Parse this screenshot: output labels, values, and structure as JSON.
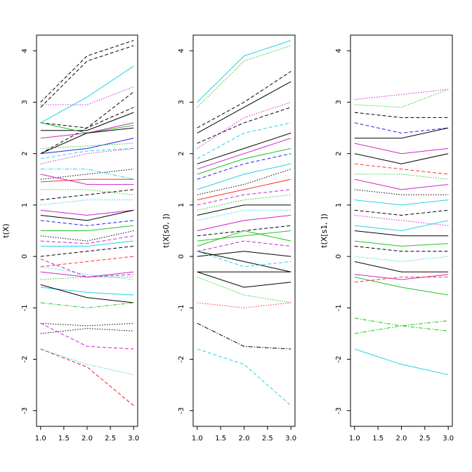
{
  "chart_data": [
    {
      "type": "line",
      "ylabel": "t(X)",
      "x": [
        1,
        2,
        3
      ],
      "xlim": [
        1,
        3
      ],
      "ylim": [
        -3,
        4
      ],
      "xticks": [
        "1.0",
        "1.5",
        "2.0",
        "2.5",
        "3.0"
      ],
      "yticks": [
        "-3",
        "-2",
        "-1",
        "0",
        "1",
        "2",
        "3",
        "4"
      ],
      "grid": false,
      "series": [
        {
          "values": [
            3.0,
            3.9,
            4.2
          ],
          "color": "#000000",
          "dash": "dashed"
        },
        {
          "values": [
            2.9,
            3.8,
            4.1
          ],
          "color": "#000000",
          "dash": "dashed"
        },
        {
          "values": [
            2.6,
            3.1,
            3.7
          ],
          "color": "#22d3e6",
          "dash": "solid"
        },
        {
          "values": [
            2.95,
            2.95,
            3.3
          ],
          "color": "#cc22cc",
          "dash": "dotted"
        },
        {
          "values": [
            2.6,
            2.5,
            3.2
          ],
          "color": "#000000",
          "dash": "dashed"
        },
        {
          "values": [
            2.45,
            2.45,
            2.8
          ],
          "color": "#000000",
          "dash": "solid"
        },
        {
          "values": [
            2.0,
            2.5,
            2.9
          ],
          "color": "#000000",
          "dash": "dashed"
        },
        {
          "values": [
            2.6,
            2.4,
            2.55
          ],
          "color": "#22c322",
          "dash": "solid"
        },
        {
          "values": [
            2.3,
            2.4,
            2.6
          ],
          "color": "#cc22cc",
          "dash": "solid"
        },
        {
          "values": [
            2.0,
            2.4,
            2.5
          ],
          "color": "#000000",
          "dash": "solid"
        },
        {
          "values": [
            2.0,
            2.1,
            2.3
          ],
          "color": "#2222ee",
          "dash": "solid"
        },
        {
          "values": [
            1.9,
            2.05,
            2.1
          ],
          "color": "#22d3e6",
          "dash": "dashed"
        },
        {
          "values": [
            2.1,
            2.15,
            2.2
          ],
          "color": "#22c322",
          "dash": "dotted"
        },
        {
          "values": [
            1.8,
            2.0,
            2.1
          ],
          "color": "#cc22cc",
          "dash": "dotted"
        },
        {
          "values": [
            1.5,
            1.6,
            1.7
          ],
          "color": "#000000",
          "dash": "dotted"
        },
        {
          "values": [
            1.7,
            1.7,
            1.5
          ],
          "color": "#22d3e6",
          "dash": "dotdash"
        },
        {
          "values": [
            1.45,
            1.5,
            1.5
          ],
          "color": "#ff3030",
          "dash": "solid"
        },
        {
          "values": [
            1.6,
            1.4,
            1.4
          ],
          "color": "#cc22cc",
          "dash": "solid"
        },
        {
          "values": [
            1.3,
            1.3,
            1.2
          ],
          "color": "#22c322",
          "dash": "dotted"
        },
        {
          "values": [
            1.1,
            1.2,
            1.3
          ],
          "color": "#000000",
          "dash": "dashed"
        },
        {
          "values": [
            1.0,
            1.1,
            1.1
          ],
          "color": "#22d3e6",
          "dash": "dotted"
        },
        {
          "values": [
            0.9,
            0.8,
            0.9
          ],
          "color": "#cc22cc",
          "dash": "solid"
        },
        {
          "values": [
            0.8,
            0.7,
            0.9
          ],
          "color": "#000000",
          "dash": "solid"
        },
        {
          "values": [
            0.7,
            0.6,
            0.7
          ],
          "color": "#2222ee",
          "dash": "dashed"
        },
        {
          "values": [
            0.5,
            0.5,
            0.6
          ],
          "color": "#22c322",
          "dash": "solid"
        },
        {
          "values": [
            0.4,
            0.3,
            0.5
          ],
          "color": "#000000",
          "dash": "dotted"
        },
        {
          "values": [
            0.3,
            0.25,
            0.4
          ],
          "color": "#cc22cc",
          "dash": "dashed"
        },
        {
          "values": [
            0.2,
            0.2,
            0.3
          ],
          "color": "#22d3e6",
          "dash": "solid"
        },
        {
          "values": [
            0.0,
            0.1,
            0.2
          ],
          "color": "#000000",
          "dash": "dashed"
        },
        {
          "values": [
            -0.2,
            -0.1,
            0.0
          ],
          "color": "#ff3030",
          "dash": "dashed"
        },
        {
          "values": [
            -0.3,
            -0.4,
            -0.3
          ],
          "color": "#cc22cc",
          "dash": "solid"
        },
        {
          "values": [
            -0.45,
            -0.4,
            -0.4
          ],
          "color": "#22c322",
          "dash": "dotted"
        },
        {
          "values": [
            -0.6,
            -0.7,
            -0.75
          ],
          "color": "#22d3e6",
          "dash": "solid"
        },
        {
          "values": [
            -0.55,
            -0.8,
            -0.9
          ],
          "color": "#000000",
          "dash": "solid"
        },
        {
          "values": [
            -0.2,
            -0.35,
            -0.45
          ],
          "color": "#22d3e6",
          "dash": "dotted"
        },
        {
          "values": [
            -0.05,
            -0.4,
            -0.35
          ],
          "color": "#cc22cc",
          "dash": "dashed"
        },
        {
          "values": [
            -0.9,
            -1.0,
            -0.9
          ],
          "color": "#22c322",
          "dash": "dotdash"
        },
        {
          "values": [
            -1.3,
            -1.35,
            -1.3
          ],
          "color": "#000000",
          "dash": "dotted"
        },
        {
          "values": [
            -1.5,
            -1.4,
            -1.45
          ],
          "color": "#000000",
          "dash": "dotted"
        },
        {
          "values": [
            -1.3,
            -1.75,
            -1.8
          ],
          "color": "#cc22cc",
          "dash": "dashed"
        },
        {
          "values": [
            -1.8,
            -2.1,
            -2.3
          ],
          "color": "#22d3e6",
          "dash": "dotted"
        },
        {
          "values": [
            -1.8,
            -2.15,
            -2.9
          ],
          "color": "#dd2222",
          "dash": "dashed"
        }
      ]
    },
    {
      "type": "line",
      "ylabel": "t(X[s0, ])",
      "x": [
        1,
        2,
        3
      ],
      "xlim": [
        1,
        3
      ],
      "ylim": [
        -3,
        4
      ],
      "xticks": [
        "1.0",
        "1.5",
        "2.0",
        "2.5",
        "3.0"
      ],
      "yticks": [
        "-3",
        "-2",
        "-1",
        "0",
        "1",
        "2",
        "3",
        "4"
      ],
      "grid": false,
      "series": [
        {
          "values": [
            3.0,
            3.9,
            4.2
          ],
          "color": "#22d3e6",
          "dash": "solid"
        },
        {
          "values": [
            2.9,
            3.8,
            4.1
          ],
          "color": "#22c322",
          "dash": "dotted"
        },
        {
          "values": [
            2.5,
            3.0,
            3.6
          ],
          "color": "#000000",
          "dash": "dashed"
        },
        {
          "values": [
            2.4,
            2.9,
            3.4
          ],
          "color": "#000000",
          "dash": "solid"
        },
        {
          "values": [
            2.1,
            2.7,
            3.0
          ],
          "color": "#cc22cc",
          "dash": "dotted"
        },
        {
          "values": [
            2.2,
            2.6,
            2.9
          ],
          "color": "#000000",
          "dash": "dashed"
        },
        {
          "values": [
            1.9,
            2.4,
            2.6
          ],
          "color": "#22d3e6",
          "dash": "dashed"
        },
        {
          "values": [
            1.8,
            2.1,
            2.4
          ],
          "color": "#000000",
          "dash": "solid"
        },
        {
          "values": [
            1.7,
            2.0,
            2.3
          ],
          "color": "#cc22cc",
          "dash": "solid"
        },
        {
          "values": [
            1.6,
            1.9,
            2.1
          ],
          "color": "#22c322",
          "dash": "solid"
        },
        {
          "values": [
            1.5,
            1.8,
            2.0
          ],
          "color": "#2222ee",
          "dash": "dashed"
        },
        {
          "values": [
            1.3,
            1.6,
            1.8
          ],
          "color": "#22d3e6",
          "dash": "solid"
        },
        {
          "values": [
            1.2,
            1.4,
            1.7
          ],
          "color": "#000000",
          "dash": "dotted"
        },
        {
          "values": [
            1.1,
            1.3,
            1.5
          ],
          "color": "#ff3030",
          "dash": "solid"
        },
        {
          "values": [
            1.0,
            1.2,
            1.3
          ],
          "color": "#cc22cc",
          "dash": "dashed"
        },
        {
          "values": [
            0.9,
            1.1,
            1.2
          ],
          "color": "#22c322",
          "dash": "dotted"
        },
        {
          "values": [
            0.8,
            1.0,
            1.0
          ],
          "color": "#000000",
          "dash": "solid"
        },
        {
          "values": [
            0.7,
            0.9,
            0.9
          ],
          "color": "#22d3e6",
          "dash": "dotted"
        },
        {
          "values": [
            0.5,
            0.7,
            0.8
          ],
          "color": "#cc22cc",
          "dash": "solid"
        },
        {
          "values": [
            0.4,
            0.5,
            0.6
          ],
          "color": "#000000",
          "dash": "dashed"
        },
        {
          "values": [
            0.3,
            0.4,
            0.5
          ],
          "color": "#22c322",
          "dash": "solid"
        },
        {
          "values": [
            0.2,
            0.5,
            0.3
          ],
          "color": "#22c322",
          "dash": "solid"
        },
        {
          "values": [
            0.1,
            0.3,
            0.2
          ],
          "color": "#cc22cc",
          "dash": "dashed"
        },
        {
          "values": [
            0.0,
            0.1,
            0.0
          ],
          "color": "#000000",
          "dash": "solid"
        },
        {
          "values": [
            0.1,
            -0.1,
            -0.3
          ],
          "color": "#000000",
          "dash": "solid"
        },
        {
          "values": [
            0.1,
            -0.2,
            -0.1
          ],
          "color": "#22d3e6",
          "dash": "dashed"
        },
        {
          "values": [
            -0.3,
            -0.6,
            -0.5
          ],
          "color": "#000000",
          "dash": "solid"
        },
        {
          "values": [
            -0.3,
            -0.3,
            -0.3
          ],
          "color": "#000000",
          "dash": "solid"
        },
        {
          "values": [
            -0.4,
            -0.75,
            -0.9
          ],
          "color": "#22c322",
          "dash": "dotted"
        },
        {
          "values": [
            -0.9,
            -1.0,
            -0.9
          ],
          "color": "#ff3030",
          "dash": "dotted"
        },
        {
          "values": [
            -1.3,
            -1.75,
            -1.8
          ],
          "color": "#000000",
          "dash": "dotdash"
        },
        {
          "values": [
            -1.8,
            -2.1,
            -2.9
          ],
          "color": "#22d3e6",
          "dash": "dashed"
        }
      ]
    },
    {
      "type": "line",
      "ylabel": "t(X[s1, ])",
      "x": [
        1,
        2,
        3
      ],
      "xlim": [
        1,
        3
      ],
      "ylim": [
        -3,
        4
      ],
      "xticks": [
        "1.0",
        "1.5",
        "2.0",
        "2.5",
        "3.0"
      ],
      "yticks": [
        "-3",
        "-2",
        "-1",
        "0",
        "1",
        "2",
        "3",
        "4"
      ],
      "grid": false,
      "series": [
        {
          "values": [
            3.05,
            3.15,
            3.25
          ],
          "color": "#cc22cc",
          "dash": "dotted"
        },
        {
          "values": [
            2.95,
            2.9,
            3.25
          ],
          "color": "#22c322",
          "dash": "dotted"
        },
        {
          "values": [
            2.8,
            2.7,
            2.7
          ],
          "color": "#000000",
          "dash": "dashed"
        },
        {
          "values": [
            2.6,
            2.4,
            2.5
          ],
          "color": "#2222ee",
          "dash": "dashed"
        },
        {
          "values": [
            2.3,
            2.3,
            2.5
          ],
          "color": "#000000",
          "dash": "solid"
        },
        {
          "values": [
            2.2,
            2.0,
            2.1
          ],
          "color": "#cc22cc",
          "dash": "solid"
        },
        {
          "values": [
            2.0,
            1.8,
            2.0
          ],
          "color": "#000000",
          "dash": "solid"
        },
        {
          "values": [
            1.8,
            1.7,
            1.6
          ],
          "color": "#ff3030",
          "dash": "dashed"
        },
        {
          "values": [
            1.6,
            1.6,
            1.5
          ],
          "color": "#22c322",
          "dash": "dotted"
        },
        {
          "values": [
            1.5,
            1.3,
            1.4
          ],
          "color": "#cc22cc",
          "dash": "solid"
        },
        {
          "values": [
            1.3,
            1.2,
            1.2
          ],
          "color": "#000000",
          "dash": "dotted"
        },
        {
          "values": [
            1.1,
            1.0,
            1.1
          ],
          "color": "#22d3e6",
          "dash": "solid"
        },
        {
          "values": [
            0.9,
            0.8,
            0.9
          ],
          "color": "#000000",
          "dash": "dashed"
        },
        {
          "values": [
            0.8,
            0.7,
            0.6
          ],
          "color": "#cc22cc",
          "dash": "dotted"
        },
        {
          "values": [
            0.6,
            0.5,
            0.7
          ],
          "color": "#22d3e6",
          "dash": "solid"
        },
        {
          "values": [
            0.5,
            0.4,
            0.4
          ],
          "color": "#000000",
          "dash": "solid"
        },
        {
          "values": [
            0.3,
            0.2,
            0.25
          ],
          "color": "#22c322",
          "dash": "solid"
        },
        {
          "values": [
            0.2,
            0.1,
            0.1
          ],
          "color": "#000000",
          "dash": "dashed"
        },
        {
          "values": [
            0.0,
            -0.1,
            0.0
          ],
          "color": "#22d3e6",
          "dash": "dotted"
        },
        {
          "values": [
            -0.1,
            -0.3,
            -0.3
          ],
          "color": "#000000",
          "dash": "solid"
        },
        {
          "values": [
            -0.35,
            -0.45,
            -0.35
          ],
          "color": "#cc22cc",
          "dash": "solid"
        },
        {
          "values": [
            -0.4,
            -0.6,
            -0.75
          ],
          "color": "#22c322",
          "dash": "solid"
        },
        {
          "values": [
            -0.5,
            -0.4,
            -0.4
          ],
          "color": "#ff3030",
          "dash": "dashed"
        },
        {
          "values": [
            -1.2,
            -1.35,
            -1.25
          ],
          "color": "#22c322",
          "dash": "dotdash"
        },
        {
          "values": [
            -1.5,
            -1.35,
            -1.45
          ],
          "color": "#22c322",
          "dash": "dotdash"
        },
        {
          "values": [
            -1.8,
            -2.1,
            -2.3
          ],
          "color": "#22d3e6",
          "dash": "solid"
        }
      ]
    }
  ]
}
